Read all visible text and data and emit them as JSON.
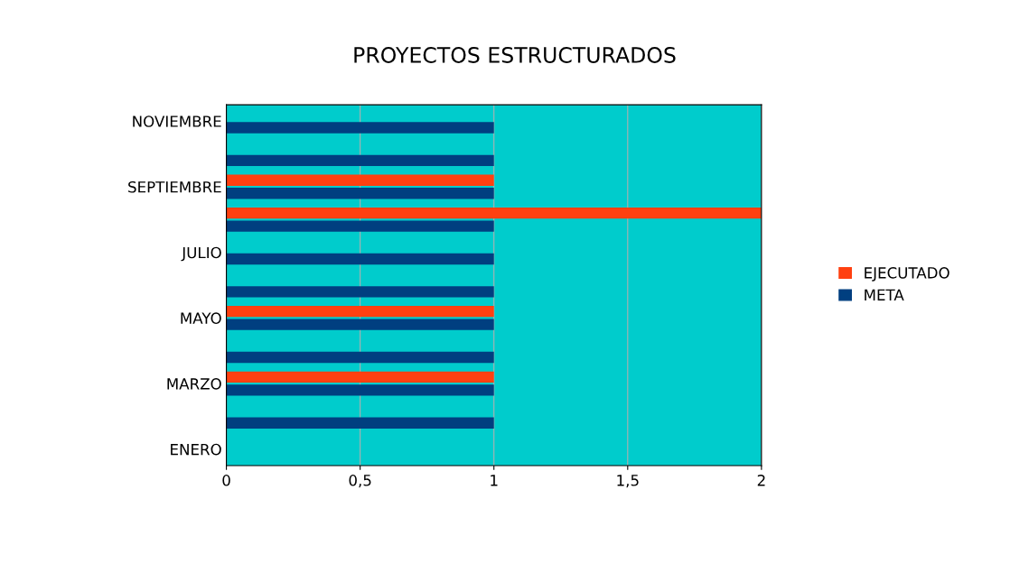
{
  "chart_data": {
    "type": "bar",
    "orientation": "horizontal",
    "title": "PROYECTOS ESTRUCTURADOS",
    "categories": [
      "NOVIEMBRE",
      null,
      "SEPTIEMBRE",
      null,
      "JULIO",
      null,
      "MAYO",
      null,
      "MARZO",
      null,
      "ENERO"
    ],
    "series": [
      {
        "name": "EJECUTADO",
        "color": "#ff4010",
        "values": [
          0,
          0,
          1,
          2,
          0,
          0,
          1,
          0,
          1,
          0,
          0
        ]
      },
      {
        "name": "META",
        "color": "#003f80",
        "values": [
          1,
          1,
          1,
          1,
          1,
          1,
          1,
          1,
          1,
          1,
          0
        ]
      }
    ],
    "xlim": [
      0,
      2
    ],
    "xticks": [
      0,
      {
        "value": 0.5,
        "label": "0,5"
      },
      1,
      {
        "value": 1.5,
        "label": "1,5"
      },
      2
    ],
    "grid": "x",
    "legend": "right"
  }
}
